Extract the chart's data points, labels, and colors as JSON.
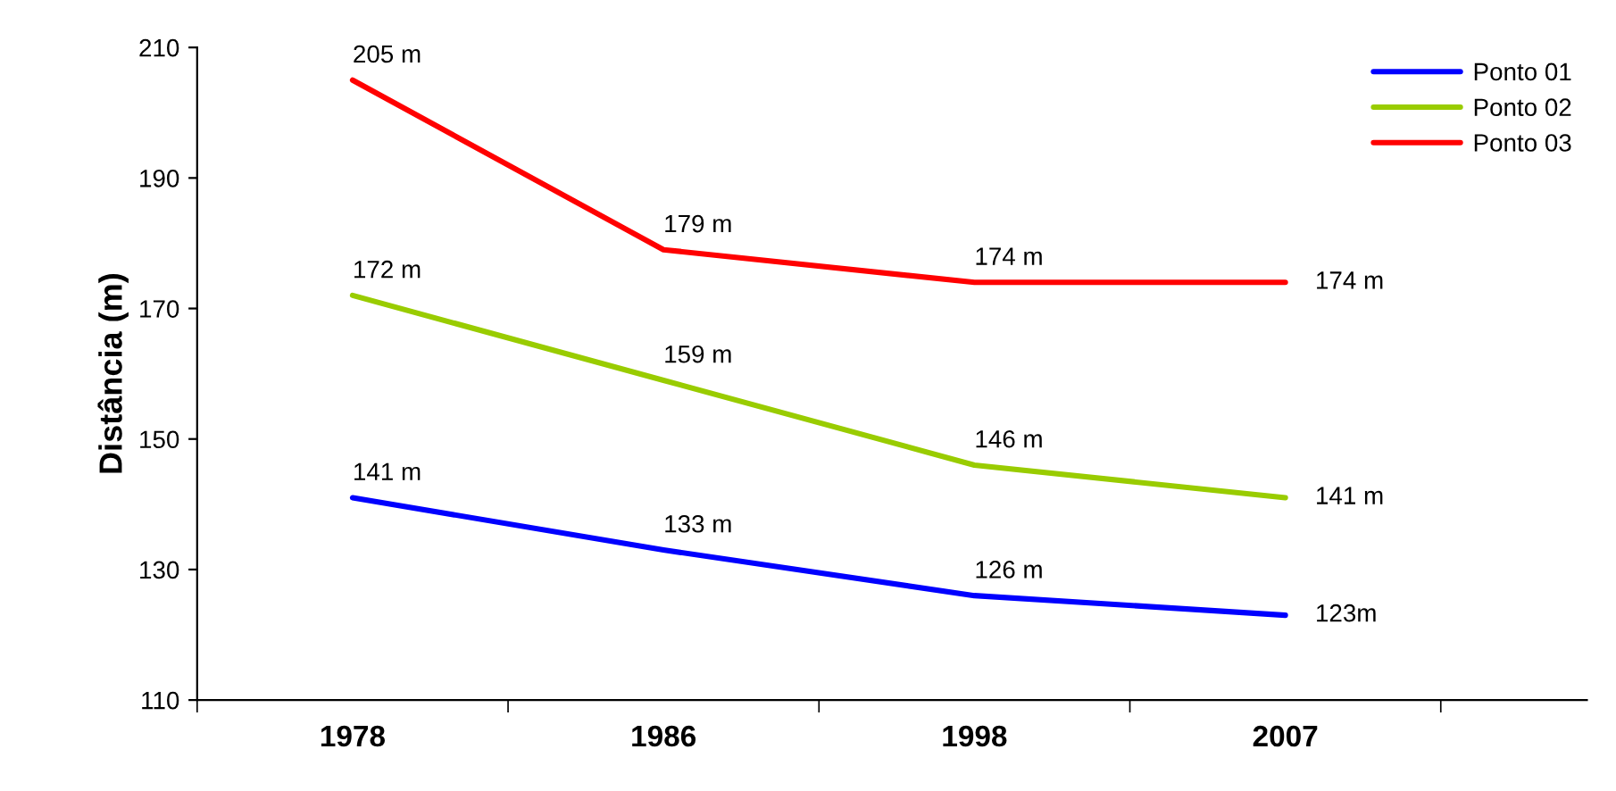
{
  "chart_data": {
    "type": "line",
    "ylabel": "Distância (m)",
    "categories": [
      "1978",
      "1986",
      "1998",
      "2007"
    ],
    "series": [
      {
        "name": "Ponto 01",
        "color": "#0000ff",
        "values": [
          141,
          133,
          126,
          123
        ],
        "value_labels": [
          "141 m",
          "133 m",
          "126 m",
          "123m"
        ]
      },
      {
        "name": "Ponto 02",
        "color": "#99cc00",
        "values": [
          172,
          159,
          146,
          141
        ],
        "value_labels": [
          "172 m",
          "159 m",
          "146 m",
          "141 m"
        ]
      },
      {
        "name": "Ponto 03",
        "color": "#ff0000",
        "values": [
          205,
          179,
          174,
          174
        ],
        "value_labels": [
          "205 m",
          "179 m",
          "174 m",
          "174 m"
        ]
      }
    ],
    "ylim": [
      110,
      210
    ],
    "yticks": [
      110,
      130,
      150,
      170,
      190,
      210
    ],
    "grid": false,
    "legend": "top right",
    "marker": "none",
    "line_style": "solid"
  }
}
